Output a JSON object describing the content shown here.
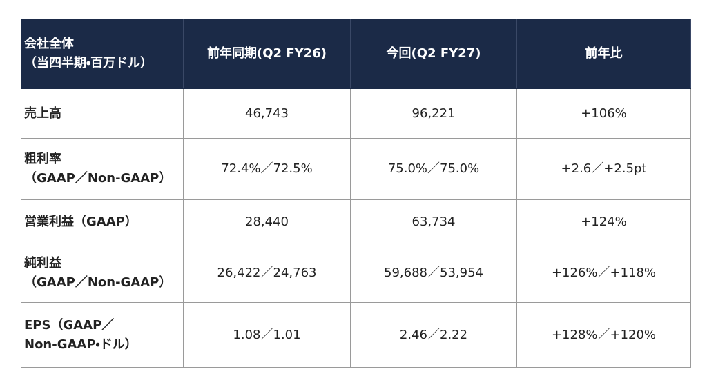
{
  "table": {
    "header": [
      "会社全体\n（当四半期・百万ドル）",
      "前年同期(Q2 FY26)",
      "今回(Q2 FY27)",
      "前年比"
    ],
    "rows": [
      [
        "売上高",
        "46,743",
        "96,221",
        "+106%"
      ],
      [
        "粗利率\n（GAAP／Non-GAAP）",
        "72.4%／72.5%",
        "75.0%／75.0%",
        "+2.6／+2.5pt"
      ],
      [
        "営業利益（GAAP）",
        "28,440",
        "63,734",
        "+124%"
      ],
      [
        "純利益\n（GAAP／Non-GAAP）",
        "26,422／24,763",
        "59,688／53,954",
        "+126%／+118%"
      ],
      [
        "EPS（GAAP／\nNon-GAAP・ドル）",
        "1.08／1.01",
        "2.46／2.22",
        "+128%／+120%"
      ]
    ]
  }
}
